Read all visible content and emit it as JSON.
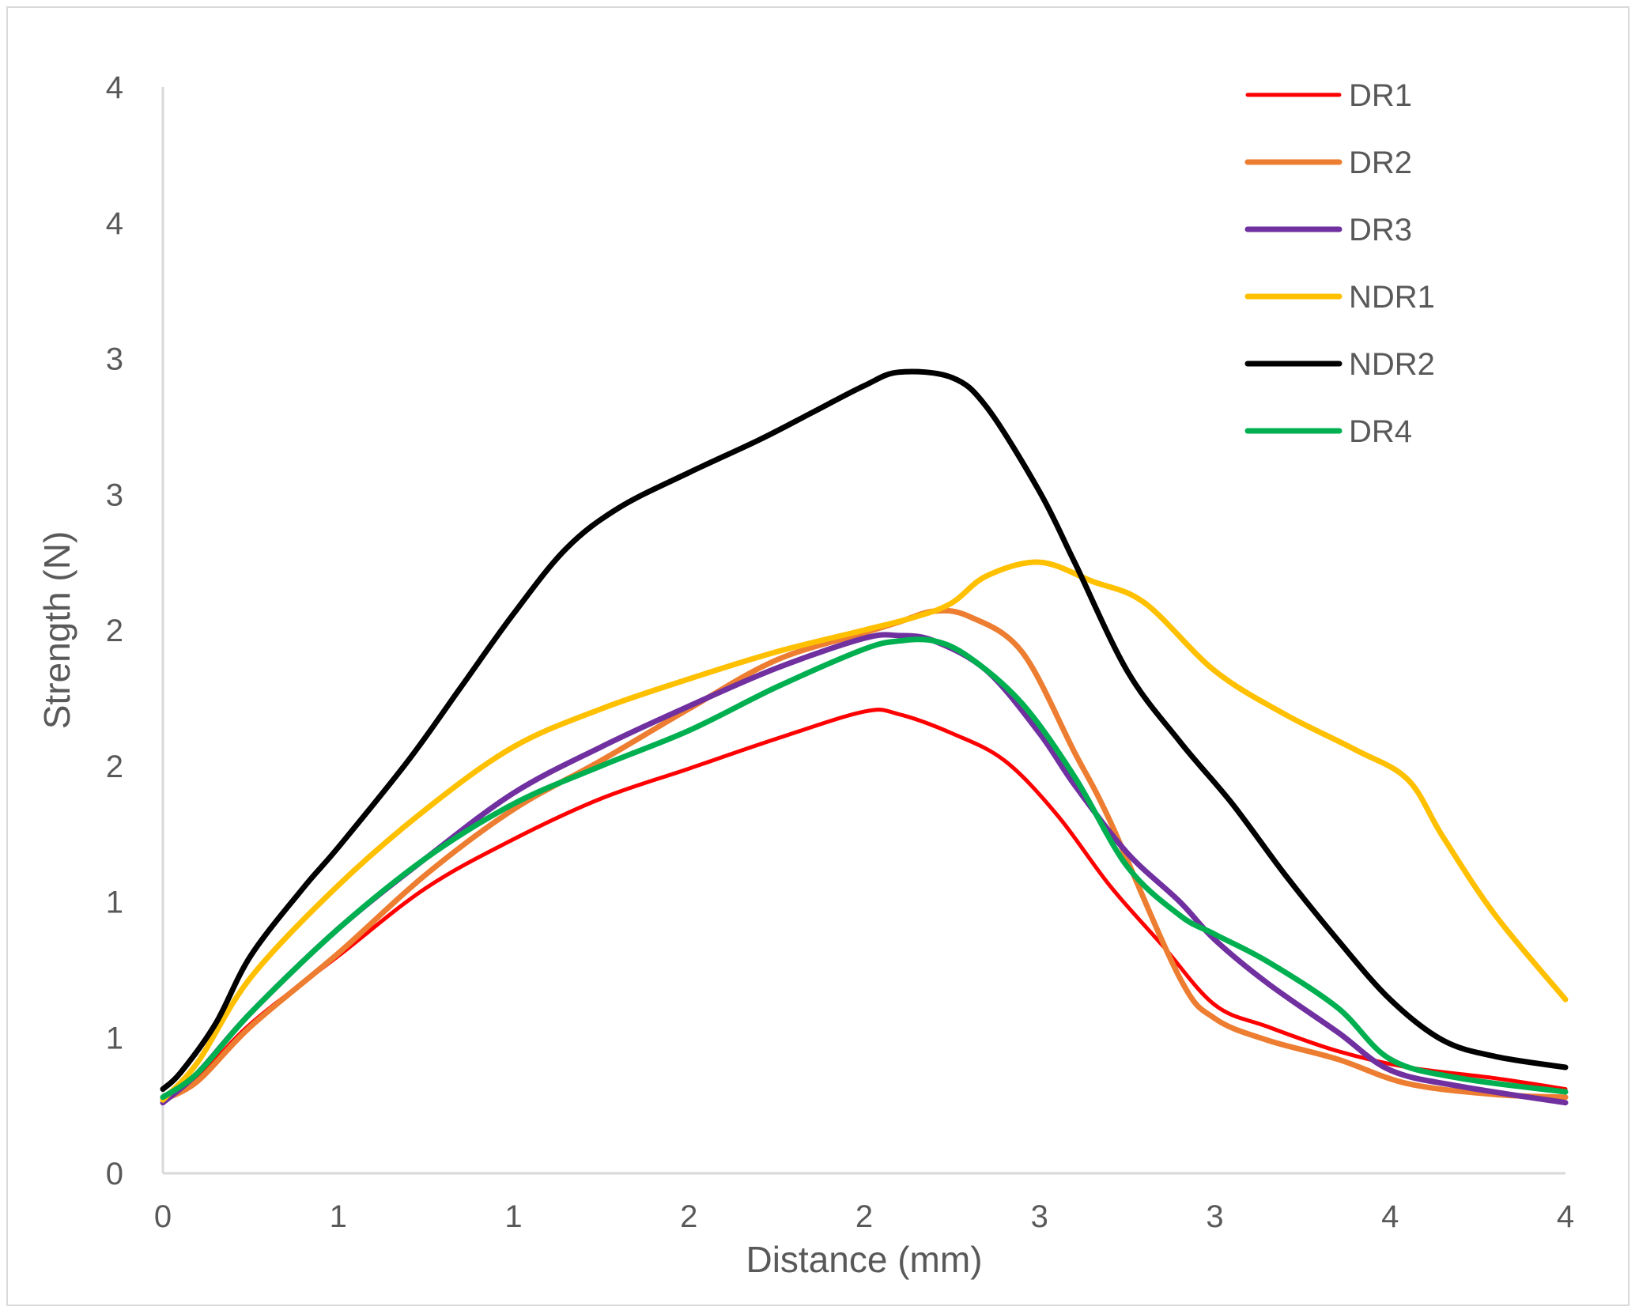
{
  "chart_data": {
    "type": "line",
    "xlabel": "Distance (mm)",
    "ylabel": "Strength (N)",
    "xlim": [
      0,
      4
    ],
    "ylim": [
      0,
      4
    ],
    "x_ticks": [
      0,
      0.5,
      1,
      1.5,
      2,
      2.5,
      3,
      3.5,
      4
    ],
    "x_tick_labels": [
      "0",
      "1",
      "1",
      "2",
      "2",
      "3",
      "3",
      "4",
      "4"
    ],
    "y_ticks": [
      0,
      0.5,
      1,
      1.5,
      2,
      2.5,
      3,
      3.5,
      4
    ],
    "y_tick_labels": [
      "0",
      "1",
      "1",
      "2",
      "2",
      "3",
      "3",
      "4",
      "4"
    ],
    "grid": false,
    "legend_position": "top-right",
    "series": [
      {
        "name": "DR1",
        "color": "#ff0000",
        "x": [
          0,
          0.1,
          0.25,
          0.5,
          0.75,
          1.0,
          1.25,
          1.5,
          1.75,
          2.0,
          2.1,
          2.25,
          2.4,
          2.55,
          2.7,
          2.85,
          3.0,
          3.15,
          3.35,
          3.55,
          3.8,
          4.0
        ],
        "y": [
          0.27,
          0.35,
          0.55,
          0.8,
          1.05,
          1.23,
          1.38,
          1.49,
          1.6,
          1.7,
          1.69,
          1.62,
          1.52,
          1.32,
          1.06,
          0.84,
          0.62,
          0.54,
          0.45,
          0.39,
          0.35,
          0.31
        ]
      },
      {
        "name": "DR2",
        "color": "#ed7d31",
        "x": [
          0,
          0.1,
          0.25,
          0.5,
          0.75,
          1.0,
          1.25,
          1.5,
          1.75,
          2.0,
          2.1,
          2.2,
          2.3,
          2.45,
          2.6,
          2.7,
          2.9,
          3.0,
          3.15,
          3.35,
          3.55,
          3.8,
          4.0
        ],
        "y": [
          0.27,
          0.34,
          0.54,
          0.81,
          1.1,
          1.34,
          1.52,
          1.71,
          1.89,
          1.99,
          2.03,
          2.07,
          2.05,
          1.92,
          1.55,
          1.3,
          0.72,
          0.57,
          0.49,
          0.42,
          0.33,
          0.29,
          0.28
        ]
      },
      {
        "name": "DR3",
        "color": "#7030a0",
        "x": [
          0,
          0.1,
          0.25,
          0.5,
          0.75,
          1.0,
          1.25,
          1.5,
          1.75,
          2.0,
          2.1,
          2.2,
          2.35,
          2.5,
          2.6,
          2.75,
          2.9,
          3.0,
          3.15,
          3.35,
          3.5,
          3.7,
          4.0
        ],
        "y": [
          0.26,
          0.37,
          0.59,
          0.9,
          1.16,
          1.4,
          1.57,
          1.72,
          1.86,
          1.97,
          1.98,
          1.96,
          1.85,
          1.62,
          1.43,
          1.18,
          1.0,
          0.86,
          0.7,
          0.52,
          0.38,
          0.32,
          0.26
        ]
      },
      {
        "name": "NDR1",
        "color": "#ffc000",
        "x": [
          0,
          0.1,
          0.25,
          0.5,
          0.75,
          1.0,
          1.25,
          1.5,
          1.75,
          2.0,
          2.15,
          2.25,
          2.35,
          2.5,
          2.65,
          2.8,
          3.0,
          3.2,
          3.4,
          3.55,
          3.65,
          3.8,
          4.0
        ],
        "y": [
          0.27,
          0.41,
          0.72,
          1.06,
          1.34,
          1.57,
          1.71,
          1.82,
          1.92,
          2.0,
          2.05,
          2.1,
          2.2,
          2.25,
          2.18,
          2.1,
          1.85,
          1.69,
          1.56,
          1.45,
          1.24,
          0.95,
          0.64
        ]
      },
      {
        "name": "NDR2",
        "color": "#000000",
        "x": [
          0,
          0.05,
          0.15,
          0.25,
          0.4,
          0.5,
          0.7,
          0.85,
          1.0,
          1.15,
          1.3,
          1.5,
          1.7,
          1.85,
          2.0,
          2.1,
          2.25,
          2.35,
          2.5,
          2.6,
          2.75,
          2.9,
          3.05,
          3.2,
          3.35,
          3.5,
          3.65,
          3.8,
          4.0
        ],
        "y": [
          0.31,
          0.37,
          0.55,
          0.8,
          1.05,
          1.2,
          1.52,
          1.79,
          2.06,
          2.3,
          2.45,
          2.58,
          2.7,
          2.8,
          2.9,
          2.95,
          2.93,
          2.82,
          2.51,
          2.25,
          1.85,
          1.59,
          1.36,
          1.1,
          0.86,
          0.64,
          0.49,
          0.43,
          0.39
        ]
      },
      {
        "name": "DR4",
        "color": "#00b050",
        "x": [
          0,
          0.1,
          0.25,
          0.5,
          0.75,
          1.0,
          1.25,
          1.5,
          1.75,
          2.0,
          2.1,
          2.2,
          2.3,
          2.45,
          2.6,
          2.75,
          2.9,
          3.0,
          3.15,
          3.35,
          3.5,
          3.7,
          4.0
        ],
        "y": [
          0.28,
          0.37,
          0.59,
          0.9,
          1.16,
          1.36,
          1.5,
          1.63,
          1.79,
          1.93,
          1.96,
          1.96,
          1.9,
          1.73,
          1.46,
          1.13,
          0.95,
          0.88,
          0.78,
          0.61,
          0.42,
          0.35,
          0.3
        ]
      }
    ]
  }
}
